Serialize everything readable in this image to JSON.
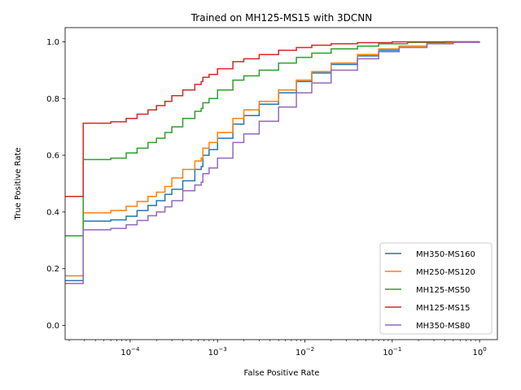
{
  "chart_data": {
    "type": "line",
    "title": "Trained on MH125-MS15 with 3DCNN",
    "xlabel": "False Positive Rate",
    "ylabel": "True Positive Rate",
    "xscale": "log",
    "xlim": [
      1.8e-05,
      1.6
    ],
    "ylim": [
      -0.05,
      1.05
    ],
    "xticks": [
      {
        "value": 0.0001,
        "base": "10",
        "exp": "−4"
      },
      {
        "value": 0.001,
        "base": "10",
        "exp": "−3"
      },
      {
        "value": 0.01,
        "base": "10",
        "exp": "−2"
      },
      {
        "value": 0.1,
        "base": "10",
        "exp": "−1"
      },
      {
        "value": 1,
        "base": "10",
        "exp": "0"
      }
    ],
    "yticks": [
      "0.0",
      "0.2",
      "0.4",
      "0.6",
      "0.8",
      "1.0"
    ],
    "grid": false,
    "legend_position": "lower-right",
    "series": [
      {
        "name": "MH350-MS160",
        "color": "#1f77b4",
        "points": [
          [
            1.8e-05,
            0.158
          ],
          [
            2.9e-05,
            0.158
          ],
          [
            2.9e-05,
            0.368
          ],
          [
            6e-05,
            0.372
          ],
          [
            9e-05,
            0.385
          ],
          [
            0.00012,
            0.405
          ],
          [
            0.00016,
            0.423
          ],
          [
            0.0002,
            0.44
          ],
          [
            0.00025,
            0.462
          ],
          [
            0.0003,
            0.48
          ],
          [
            0.0004,
            0.51
          ],
          [
            0.00055,
            0.55
          ],
          [
            0.00065,
            0.56
          ],
          [
            0.00068,
            0.6
          ],
          [
            0.0008,
            0.62
          ],
          [
            0.001,
            0.66
          ],
          [
            0.0015,
            0.71
          ],
          [
            0.002,
            0.74
          ],
          [
            0.003,
            0.78
          ],
          [
            0.005,
            0.82
          ],
          [
            0.008,
            0.86
          ],
          [
            0.012,
            0.89
          ],
          [
            0.02,
            0.92
          ],
          [
            0.04,
            0.95
          ],
          [
            0.07,
            0.97
          ],
          [
            0.12,
            0.985
          ],
          [
            0.25,
            0.995
          ],
          [
            0.5,
            0.999
          ],
          [
            1,
            1
          ]
        ]
      },
      {
        "name": "MH250-MS120",
        "color": "#ff7f0e",
        "points": [
          [
            1.8e-05,
            0.175
          ],
          [
            2.9e-05,
            0.175
          ],
          [
            2.9e-05,
            0.397
          ],
          [
            6e-05,
            0.405
          ],
          [
            9e-05,
            0.42
          ],
          [
            0.00012,
            0.437
          ],
          [
            0.00016,
            0.455
          ],
          [
            0.0002,
            0.47
          ],
          [
            0.00025,
            0.49
          ],
          [
            0.0003,
            0.52
          ],
          [
            0.0004,
            0.55
          ],
          [
            0.00055,
            0.58
          ],
          [
            0.00065,
            0.59
          ],
          [
            0.00068,
            0.625
          ],
          [
            0.0008,
            0.645
          ],
          [
            0.001,
            0.68
          ],
          [
            0.0015,
            0.73
          ],
          [
            0.002,
            0.76
          ],
          [
            0.003,
            0.79
          ],
          [
            0.005,
            0.83
          ],
          [
            0.008,
            0.865
          ],
          [
            0.012,
            0.895
          ],
          [
            0.02,
            0.925
          ],
          [
            0.04,
            0.955
          ],
          [
            0.07,
            0.975
          ],
          [
            0.12,
            0.985
          ],
          [
            0.25,
            0.995
          ],
          [
            0.5,
            0.999
          ],
          [
            1,
            1
          ]
        ]
      },
      {
        "name": "MH125-MS50",
        "color": "#2ca02c",
        "points": [
          [
            1.8e-05,
            0.316
          ],
          [
            2.9e-05,
            0.316
          ],
          [
            2.9e-05,
            0.585
          ],
          [
            6e-05,
            0.59
          ],
          [
            9e-05,
            0.608
          ],
          [
            0.00012,
            0.625
          ],
          [
            0.00016,
            0.645
          ],
          [
            0.0002,
            0.66
          ],
          [
            0.00025,
            0.68
          ],
          [
            0.0003,
            0.7
          ],
          [
            0.0004,
            0.73
          ],
          [
            0.00055,
            0.755
          ],
          [
            0.00065,
            0.765
          ],
          [
            0.00068,
            0.785
          ],
          [
            0.0008,
            0.8
          ],
          [
            0.001,
            0.83
          ],
          [
            0.0015,
            0.865
          ],
          [
            0.002,
            0.88
          ],
          [
            0.003,
            0.9
          ],
          [
            0.005,
            0.925
          ],
          [
            0.008,
            0.945
          ],
          [
            0.012,
            0.96
          ],
          [
            0.02,
            0.975
          ],
          [
            0.04,
            0.985
          ],
          [
            0.07,
            0.993
          ],
          [
            0.15,
            0.998
          ],
          [
            0.4,
            1
          ],
          [
            1,
            1
          ]
        ]
      },
      {
        "name": "MH125-MS15",
        "color": "#d62728",
        "points": [
          [
            1.8e-05,
            0.455
          ],
          [
            2.9e-05,
            0.455
          ],
          [
            2.9e-05,
            0.713
          ],
          [
            6e-05,
            0.718
          ],
          [
            9e-05,
            0.73
          ],
          [
            0.00012,
            0.745
          ],
          [
            0.00016,
            0.76
          ],
          [
            0.0002,
            0.775
          ],
          [
            0.00025,
            0.79
          ],
          [
            0.0003,
            0.81
          ],
          [
            0.0004,
            0.83
          ],
          [
            0.00055,
            0.85
          ],
          [
            0.00065,
            0.86
          ],
          [
            0.00068,
            0.875
          ],
          [
            0.0008,
            0.885
          ],
          [
            0.001,
            0.905
          ],
          [
            0.0015,
            0.93
          ],
          [
            0.002,
            0.94
          ],
          [
            0.003,
            0.955
          ],
          [
            0.005,
            0.97
          ],
          [
            0.008,
            0.98
          ],
          [
            0.012,
            0.988
          ],
          [
            0.02,
            0.993
          ],
          [
            0.04,
            0.997
          ],
          [
            0.1,
            1
          ],
          [
            1,
            1
          ]
        ]
      },
      {
        "name": "MH350-MS80",
        "color": "#9467bd",
        "points": [
          [
            1.8e-05,
            0.148
          ],
          [
            2.9e-05,
            0.148
          ],
          [
            2.9e-05,
            0.337
          ],
          [
            6e-05,
            0.342
          ],
          [
            9e-05,
            0.355
          ],
          [
            0.00012,
            0.37
          ],
          [
            0.00016,
            0.387
          ],
          [
            0.0002,
            0.4
          ],
          [
            0.00025,
            0.418
          ],
          [
            0.0003,
            0.44
          ],
          [
            0.0004,
            0.475
          ],
          [
            0.00055,
            0.495
          ],
          [
            0.00065,
            0.505
          ],
          [
            0.00068,
            0.535
          ],
          [
            0.0008,
            0.555
          ],
          [
            0.001,
            0.59
          ],
          [
            0.0015,
            0.645
          ],
          [
            0.002,
            0.675
          ],
          [
            0.003,
            0.72
          ],
          [
            0.005,
            0.77
          ],
          [
            0.008,
            0.82
          ],
          [
            0.012,
            0.855
          ],
          [
            0.02,
            0.9
          ],
          [
            0.04,
            0.94
          ],
          [
            0.07,
            0.965
          ],
          [
            0.12,
            0.98
          ],
          [
            0.25,
            0.993
          ],
          [
            0.5,
            0.998
          ],
          [
            1,
            1
          ]
        ]
      }
    ]
  }
}
